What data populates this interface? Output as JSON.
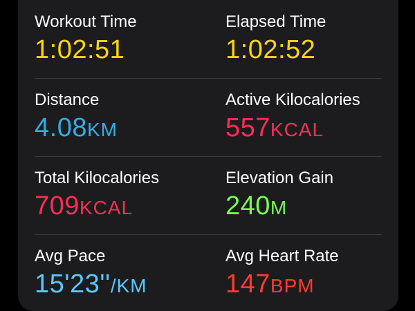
{
  "colors": {
    "time": "#ffd60a",
    "distance": "#32ade6",
    "calories": "#ff2d55",
    "elevation": "#7cf94c",
    "pace": "#5ac8fa",
    "heart": "#ff3b30"
  },
  "metrics": {
    "workout_time": {
      "label": "Workout Time",
      "value": "1:02:51",
      "unit": ""
    },
    "elapsed_time": {
      "label": "Elapsed Time",
      "value": "1:02:52",
      "unit": ""
    },
    "distance": {
      "label": "Distance",
      "value": "4.08",
      "unit": "KM"
    },
    "active_kcal": {
      "label": "Active Kilocalories",
      "value": "557",
      "unit": "KCAL"
    },
    "total_kcal": {
      "label": "Total Kilocalories",
      "value": "709",
      "unit": "KCAL"
    },
    "elevation_gain": {
      "label": "Elevation Gain",
      "value": "240",
      "unit": "M"
    },
    "avg_pace": {
      "label": "Avg Pace",
      "value": "15'23''",
      "unit": "/KM"
    },
    "avg_heart_rate": {
      "label": "Avg Heart Rate",
      "value": "147",
      "unit": "BPM"
    }
  }
}
